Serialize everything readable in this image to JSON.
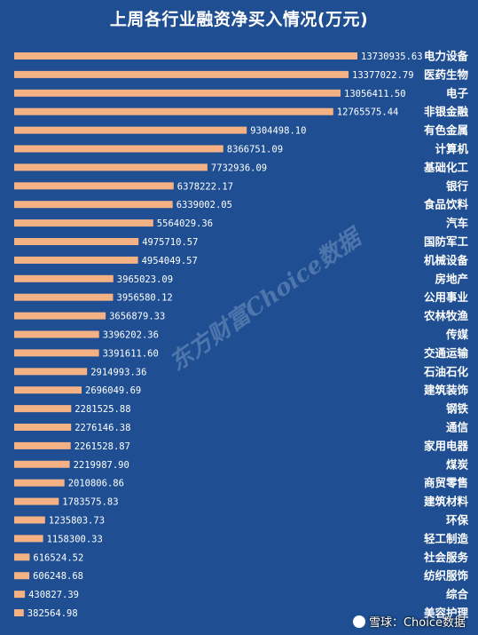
{
  "colors": {
    "background": "#1f4f92",
    "bar": "#f4b183",
    "text": "#ffffff"
  },
  "watermark": "东方财富Choice数据",
  "credit": "雪球：Choice数据",
  "chart_data": {
    "type": "bar",
    "orientation": "horizontal",
    "title": "上周各行业融资净买入情况(万元)",
    "grid": false,
    "legend": "none",
    "xlim": [
      0,
      13730935.63
    ],
    "categories": [
      "电力设备",
      "医药生物",
      "电子",
      "非银金融",
      "有色金属",
      "计算机",
      "基础化工",
      "银行",
      "食品饮料",
      "汽车",
      "国防军工",
      "机械设备",
      "房地产",
      "公用事业",
      "农林牧渔",
      "传媒",
      "交通运输",
      "石油石化",
      "建筑装饰",
      "钢铁",
      "通信",
      "家用电器",
      "煤炭",
      "商贸零售",
      "建筑材料",
      "环保",
      "轻工制造",
      "社会服务",
      "纺织服饰",
      "综合",
      "美容护理"
    ],
    "labels": [
      "13730935.63",
      "13377022.79",
      "13056411.50",
      "12765575.44",
      "9304498.10",
      "8366751.09",
      "7732936.09",
      "6378222.17",
      "6339002.05",
      "5564029.36",
      "4975710.57",
      "4954049.57",
      "3965023.09",
      "3956580.12",
      "3656879.33",
      "3396202.36",
      "3391611.60",
      "2914993.36",
      "2696049.69",
      "2281525.88",
      "2276146.38",
      "2261528.87",
      "2219987.90",
      "2010806.86",
      "1783575.83",
      "1235803.73",
      "1158300.33",
      "616524.52",
      "606248.68",
      "430827.39",
      "382564.98"
    ],
    "values": [
      13730935.63,
      13377022.79,
      13056411.5,
      12765575.44,
      9304498.1,
      8366751.09,
      7732936.09,
      6378222.17,
      6339002.05,
      5564029.36,
      4975710.57,
      4954049.57,
      3965023.09,
      3956580.12,
      3656879.33,
      3396202.36,
      3391611.6,
      2914993.36,
      2696049.69,
      2281525.88,
      2276146.38,
      2261528.87,
      2219987.9,
      2010806.86,
      1783575.83,
      1235803.73,
      1158300.33,
      616524.52,
      606248.68,
      430827.39,
      382564.98
    ]
  }
}
